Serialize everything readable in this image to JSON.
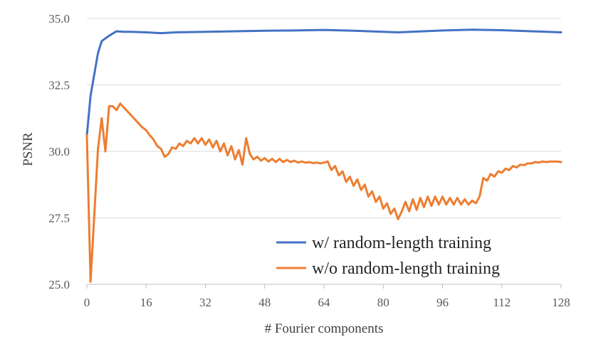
{
  "chart_data": {
    "type": "line",
    "title": "",
    "xlabel": "# Fourier components",
    "ylabel": "PSNR",
    "xlim": [
      0,
      128
    ],
    "ylim": [
      25.0,
      35.0
    ],
    "xticks": [
      0,
      16,
      32,
      48,
      64,
      80,
      96,
      112,
      128
    ],
    "xtick_labels": [
      "0",
      "16",
      "32",
      "48",
      "64",
      "80",
      "96",
      "112",
      "128"
    ],
    "yticks": [
      25.0,
      27.5,
      30.0,
      32.5,
      35.0
    ],
    "ytick_labels": [
      "25.0",
      "27.5",
      "30.0",
      "32.5",
      "35.0"
    ],
    "grid": "horizontal",
    "legend_position": "bottom-right",
    "series": [
      {
        "name": "w/   random-length training",
        "color": "#4472C4",
        "points": [
          [
            0,
            30.6
          ],
          [
            1,
            32.1
          ],
          [
            2,
            32.9
          ],
          [
            3,
            33.7
          ],
          [
            4,
            34.15
          ],
          [
            6,
            34.35
          ],
          [
            8,
            34.52
          ],
          [
            10,
            34.5
          ],
          [
            12,
            34.5
          ],
          [
            16,
            34.48
          ],
          [
            20,
            34.45
          ],
          [
            24,
            34.48
          ],
          [
            32,
            34.5
          ],
          [
            40,
            34.52
          ],
          [
            48,
            34.54
          ],
          [
            56,
            34.55
          ],
          [
            64,
            34.57
          ],
          [
            72,
            34.54
          ],
          [
            84,
            34.48
          ],
          [
            96,
            34.55
          ],
          [
            104,
            34.58
          ],
          [
            112,
            34.56
          ],
          [
            120,
            34.52
          ],
          [
            128,
            34.48
          ]
        ]
      },
      {
        "name": "w/o random-length training",
        "color": "#ED7D31",
        "points": [
          [
            0,
            30.6
          ],
          [
            1,
            25.1
          ],
          [
            2,
            27.6
          ],
          [
            3,
            30.1
          ],
          [
            4,
            31.25
          ],
          [
            5,
            30.0
          ],
          [
            6,
            31.7
          ],
          [
            7,
            31.7
          ],
          [
            8,
            31.55
          ],
          [
            9,
            31.8
          ],
          [
            10,
            31.65
          ],
          [
            11,
            31.5
          ],
          [
            12,
            31.35
          ],
          [
            13,
            31.2
          ],
          [
            14,
            31.05
          ],
          [
            15,
            30.9
          ],
          [
            16,
            30.8
          ],
          [
            17,
            30.6
          ],
          [
            18,
            30.45
          ],
          [
            19,
            30.2
          ],
          [
            20,
            30.1
          ],
          [
            21,
            29.8
          ],
          [
            22,
            29.9
          ],
          [
            23,
            30.15
          ],
          [
            24,
            30.1
          ],
          [
            25,
            30.3
          ],
          [
            26,
            30.2
          ],
          [
            27,
            30.4
          ],
          [
            28,
            30.3
          ],
          [
            29,
            30.5
          ],
          [
            30,
            30.3
          ],
          [
            31,
            30.5
          ],
          [
            32,
            30.25
          ],
          [
            33,
            30.45
          ],
          [
            34,
            30.15
          ],
          [
            35,
            30.4
          ],
          [
            36,
            30.0
          ],
          [
            37,
            30.3
          ],
          [
            38,
            29.85
          ],
          [
            39,
            30.2
          ],
          [
            40,
            29.7
          ],
          [
            41,
            30.05
          ],
          [
            42,
            29.5
          ],
          [
            43,
            30.5
          ],
          [
            44,
            29.9
          ],
          [
            45,
            29.7
          ],
          [
            46,
            29.8
          ],
          [
            47,
            29.65
          ],
          [
            48,
            29.75
          ],
          [
            49,
            29.62
          ],
          [
            50,
            29.72
          ],
          [
            51,
            29.6
          ],
          [
            52,
            29.72
          ],
          [
            53,
            29.6
          ],
          [
            54,
            29.68
          ],
          [
            55,
            29.6
          ],
          [
            56,
            29.65
          ],
          [
            57,
            29.58
          ],
          [
            58,
            29.62
          ],
          [
            59,
            29.58
          ],
          [
            60,
            29.6
          ],
          [
            61,
            29.56
          ],
          [
            62,
            29.58
          ],
          [
            63,
            29.55
          ],
          [
            64,
            29.58
          ],
          [
            65,
            29.62
          ],
          [
            66,
            29.3
          ],
          [
            67,
            29.45
          ],
          [
            68,
            29.1
          ],
          [
            69,
            29.25
          ],
          [
            70,
            28.85
          ],
          [
            71,
            29.05
          ],
          [
            72,
            28.7
          ],
          [
            73,
            28.95
          ],
          [
            74,
            28.55
          ],
          [
            75,
            28.75
          ],
          [
            76,
            28.3
          ],
          [
            77,
            28.5
          ],
          [
            78,
            28.1
          ],
          [
            79,
            28.3
          ],
          [
            80,
            27.85
          ],
          [
            81,
            28.05
          ],
          [
            82,
            27.65
          ],
          [
            83,
            27.85
          ],
          [
            84,
            27.45
          ],
          [
            85,
            27.75
          ],
          [
            86,
            28.1
          ],
          [
            87,
            27.75
          ],
          [
            88,
            28.2
          ],
          [
            89,
            27.8
          ],
          [
            90,
            28.25
          ],
          [
            91,
            27.9
          ],
          [
            92,
            28.3
          ],
          [
            93,
            27.95
          ],
          [
            94,
            28.3
          ],
          [
            95,
            28.0
          ],
          [
            96,
            28.3
          ],
          [
            97,
            28.0
          ],
          [
            98,
            28.25
          ],
          [
            99,
            28.0
          ],
          [
            100,
            28.25
          ],
          [
            101,
            28.0
          ],
          [
            102,
            28.2
          ],
          [
            103,
            28.0
          ],
          [
            104,
            28.15
          ],
          [
            105,
            28.05
          ],
          [
            106,
            28.3
          ],
          [
            107,
            29.0
          ],
          [
            108,
            28.9
          ],
          [
            109,
            29.15
          ],
          [
            110,
            29.05
          ],
          [
            111,
            29.25
          ],
          [
            112,
            29.2
          ],
          [
            113,
            29.35
          ],
          [
            114,
            29.3
          ],
          [
            115,
            29.45
          ],
          [
            116,
            29.4
          ],
          [
            117,
            29.5
          ],
          [
            118,
            29.48
          ],
          [
            119,
            29.55
          ],
          [
            120,
            29.55
          ],
          [
            121,
            29.6
          ],
          [
            122,
            29.58
          ],
          [
            123,
            29.62
          ],
          [
            124,
            29.6
          ],
          [
            125,
            29.62
          ],
          [
            126,
            29.62
          ],
          [
            127,
            29.62
          ],
          [
            128,
            29.6
          ]
        ]
      }
    ]
  }
}
